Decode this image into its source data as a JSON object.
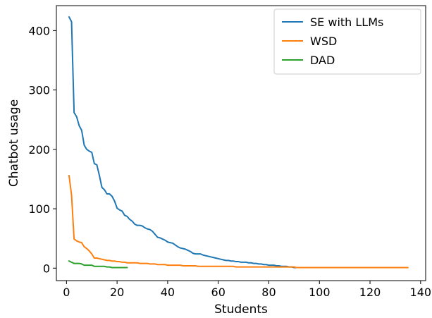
{
  "chart_data": {
    "type": "line",
    "title": "",
    "xlabel": "Students",
    "ylabel": "Chatbot usage",
    "xlim": [
      -4,
      142
    ],
    "ylim": [
      -21,
      442
    ],
    "x_ticks": [
      0,
      20,
      40,
      60,
      80,
      100,
      120,
      140
    ],
    "y_ticks": [
      0,
      100,
      200,
      300,
      400
    ],
    "grid": false,
    "legend_position": "upper-right",
    "series": [
      {
        "name": "SE with LLMs",
        "color": "#1f77b4",
        "x": [
          1,
          2,
          3,
          4,
          5,
          6,
          7,
          8,
          9,
          10,
          11,
          12,
          13,
          14,
          15,
          16,
          17,
          18,
          19,
          20,
          21,
          22,
          23,
          24,
          25,
          26,
          27,
          28,
          29,
          30,
          31,
          32,
          33,
          34,
          35,
          36,
          37,
          38,
          39,
          40,
          41,
          42,
          43,
          44,
          45,
          46,
          47,
          48,
          49,
          50,
          51,
          52,
          53,
          54,
          55,
          56,
          57,
          58,
          59,
          60,
          61,
          62,
          63,
          64,
          65,
          66,
          67,
          68,
          69,
          70,
          71,
          72,
          73,
          74,
          75,
          76,
          77,
          78,
          79,
          80,
          81,
          82,
          83,
          84,
          85,
          86,
          87,
          88,
          89,
          90,
          91
        ],
        "values": [
          423,
          415,
          262,
          255,
          240,
          232,
          207,
          200,
          197,
          195,
          176,
          174,
          156,
          136,
          132,
          125,
          125,
          121,
          113,
          101,
          98,
          96,
          89,
          87,
          82,
          79,
          74,
          72,
          72,
          71,
          68,
          66,
          65,
          62,
          57,
          52,
          51,
          49,
          47,
          44,
          43,
          42,
          39,
          36,
          34,
          33,
          32,
          30,
          28,
          25,
          24,
          24,
          24,
          22,
          21,
          20,
          19,
          18,
          17,
          16,
          15,
          14,
          13,
          13,
          12,
          12,
          11,
          11,
          10,
          10,
          10,
          9,
          9,
          8,
          8,
          7,
          7,
          6,
          6,
          5,
          5,
          5,
          4,
          4,
          3,
          3,
          3,
          2,
          2,
          1,
          1
        ]
      },
      {
        "name": "WSD",
        "color": "#ff7f0e",
        "x": [
          1,
          2,
          3,
          4,
          5,
          6,
          7,
          8,
          9,
          10,
          11,
          12,
          13,
          14,
          15,
          16,
          17,
          18,
          19,
          20,
          21,
          22,
          23,
          24,
          25,
          26,
          27,
          28,
          29,
          30,
          31,
          32,
          33,
          34,
          35,
          36,
          37,
          38,
          39,
          40,
          41,
          42,
          43,
          44,
          45,
          46,
          47,
          48,
          49,
          50,
          51,
          52,
          53,
          54,
          55,
          56,
          57,
          58,
          59,
          60,
          61,
          62,
          63,
          64,
          65,
          66,
          67,
          68,
          69,
          70,
          71,
          72,
          73,
          74,
          75,
          76,
          77,
          78,
          79,
          80,
          81,
          82,
          83,
          84,
          85,
          86,
          87,
          88,
          89,
          90,
          91,
          92,
          93,
          94,
          95,
          96,
          97,
          98,
          99,
          100,
          101,
          102,
          103,
          104,
          105,
          106,
          107,
          108,
          109,
          110,
          111,
          112,
          113,
          114,
          115,
          116,
          117,
          118,
          119,
          120,
          121,
          122,
          123,
          124,
          125,
          126,
          127,
          128,
          129,
          130,
          131,
          132,
          133,
          134,
          135
        ],
        "values": [
          156,
          123,
          49,
          46,
          44,
          43,
          36,
          33,
          29,
          24,
          17,
          17,
          16,
          15,
          14,
          13,
          13,
          12,
          12,
          11,
          11,
          10,
          10,
          9,
          9,
          9,
          9,
          9,
          8,
          8,
          8,
          8,
          7,
          7,
          7,
          6,
          6,
          6,
          6,
          5,
          5,
          5,
          5,
          5,
          5,
          4,
          4,
          4,
          4,
          4,
          4,
          3,
          3,
          3,
          3,
          3,
          3,
          3,
          3,
          3,
          3,
          3,
          3,
          3,
          3,
          3,
          2,
          2,
          2,
          2,
          2,
          2,
          2,
          2,
          2,
          2,
          2,
          2,
          2,
          2,
          2,
          2,
          2,
          2,
          2,
          2,
          2,
          2,
          2,
          2,
          1,
          1,
          1,
          1,
          1,
          1,
          1,
          1,
          1,
          1,
          1,
          1,
          1,
          1,
          1,
          1,
          1,
          1,
          1,
          1,
          1,
          1,
          1,
          1,
          1,
          1,
          1,
          1,
          1,
          1,
          1,
          1,
          1,
          1,
          1,
          1,
          1,
          1,
          1,
          1,
          1,
          1,
          1,
          1,
          1
        ]
      },
      {
        "name": "DAD",
        "color": "#2ca02c",
        "x": [
          1,
          2,
          3,
          4,
          5,
          6,
          7,
          8,
          9,
          10,
          11,
          12,
          13,
          14,
          15,
          16,
          17,
          18,
          19,
          20,
          21,
          22,
          23,
          24
        ],
        "values": [
          12,
          10,
          8,
          8,
          8,
          7,
          5,
          5,
          5,
          5,
          3,
          3,
          3,
          3,
          3,
          2,
          2,
          1,
          1,
          1,
          1,
          1,
          1,
          1
        ]
      }
    ]
  }
}
